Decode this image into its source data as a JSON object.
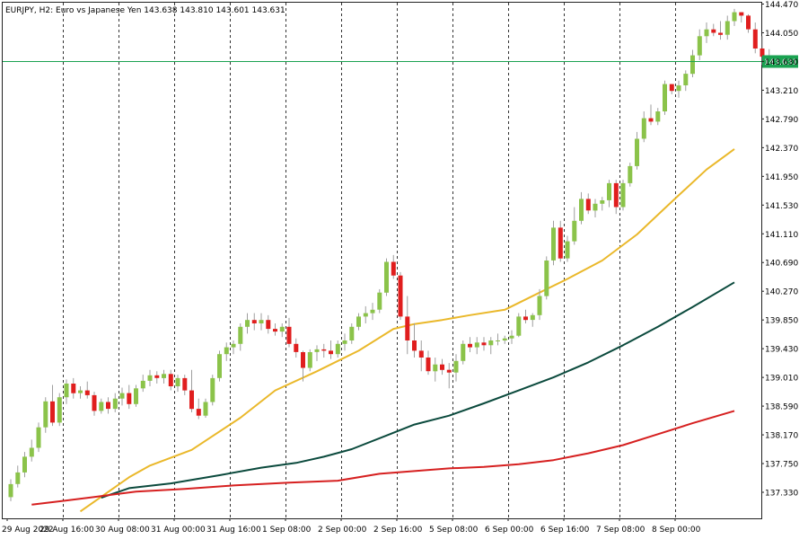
{
  "header": {
    "title": "EURJPY, H2:  Euro vs Japanese Yen  143.638 143.810 143.601 143.631"
  },
  "chart_data": {
    "type": "candlestick",
    "symbol": "EURJPY",
    "timeframe": "H2",
    "description": "Euro vs Japanese Yen",
    "ohlc_header": {
      "open": 143.638,
      "high": 143.81,
      "low": 143.601,
      "close": 143.631
    },
    "current_price": 143.631,
    "current_price_label": "143.631",
    "ylim": [
      137.06,
      144.52
    ],
    "y_ticks": [
      "144.470",
      "144.050",
      "143.630",
      "143.210",
      "142.790",
      "142.370",
      "141.950",
      "141.530",
      "141.110",
      "140.690",
      "140.270",
      "139.850",
      "139.430",
      "139.010",
      "138.590",
      "138.170",
      "137.750",
      "137.330"
    ],
    "x_labels": [
      {
        "bar": 0,
        "label": "29 Aug 2022"
      },
      {
        "bar": 8,
        "label": "29 Aug 16:00"
      },
      {
        "bar": 16,
        "label": "30 Aug 08:00"
      },
      {
        "bar": 24,
        "label": "31 Aug 00:00"
      },
      {
        "bar": 32,
        "label": "31 Aug 16:00"
      },
      {
        "bar": 40,
        "label": "1 Sep 08:00"
      },
      {
        "bar": 48,
        "label": "2 Sep 00:00"
      },
      {
        "bar": 56,
        "label": "2 Sep 16:00"
      },
      {
        "bar": 64,
        "label": "5 Sep 08:00"
      },
      {
        "bar": 72,
        "label": "6 Sep 00:00"
      },
      {
        "bar": 80,
        "label": "6 Sep 16:00"
      },
      {
        "bar": 88,
        "label": "7 Sep 08:00"
      },
      {
        "bar": 96,
        "label": "8 Sep 00:00"
      }
    ],
    "vgrid_bars": [
      8,
      16,
      24,
      32,
      40,
      48,
      56,
      64,
      72,
      80,
      88,
      96
    ],
    "grid": "vertical dashed",
    "candles": [
      [
        137.26,
        137.52,
        137.2,
        137.45
      ],
      [
        137.45,
        137.72,
        137.4,
        137.62
      ],
      [
        137.62,
        137.92,
        137.55,
        137.85
      ],
      [
        137.85,
        138.1,
        137.78,
        137.98
      ],
      [
        137.98,
        138.35,
        137.92,
        138.28
      ],
      [
        138.28,
        138.72,
        138.2,
        138.66
      ],
      [
        138.66,
        138.9,
        138.3,
        138.35
      ],
      [
        138.35,
        138.78,
        138.3,
        138.72
      ],
      [
        138.72,
        138.98,
        138.62,
        138.92
      ],
      [
        138.92,
        139.0,
        138.7,
        138.78
      ],
      [
        138.78,
        138.88,
        138.7,
        138.82
      ],
      [
        138.82,
        138.95,
        138.7,
        138.75
      ],
      [
        138.75,
        138.8,
        138.45,
        138.52
      ],
      [
        138.52,
        138.7,
        138.48,
        138.65
      ],
      [
        138.65,
        138.72,
        138.48,
        138.55
      ],
      [
        138.55,
        138.78,
        138.5,
        138.7
      ],
      [
        138.7,
        138.86,
        138.6,
        138.78
      ],
      [
        138.78,
        138.9,
        138.55,
        138.62
      ],
      [
        138.62,
        138.9,
        138.58,
        138.85
      ],
      [
        138.85,
        139.05,
        138.8,
        138.96
      ],
      [
        138.96,
        139.12,
        138.88,
        139.04
      ],
      [
        139.04,
        139.1,
        138.92,
        139.0
      ],
      [
        139.0,
        139.12,
        138.92,
        139.06
      ],
      [
        139.06,
        139.12,
        138.82,
        138.88
      ],
      [
        138.88,
        139.05,
        138.8,
        139.0
      ],
      [
        139.0,
        139.05,
        138.75,
        138.82
      ],
      [
        138.82,
        139.12,
        138.5,
        138.55
      ],
      [
        138.55,
        138.7,
        138.4,
        138.45
      ],
      [
        138.45,
        138.7,
        138.42,
        138.65
      ],
      [
        138.65,
        139.05,
        138.6,
        139.0
      ],
      [
        139.0,
        139.4,
        138.95,
        139.35
      ],
      [
        139.35,
        139.52,
        139.25,
        139.45
      ],
      [
        139.45,
        139.55,
        139.35,
        139.5
      ],
      [
        139.5,
        139.8,
        139.4,
        139.75
      ],
      [
        139.75,
        139.95,
        139.65,
        139.85
      ],
      [
        139.85,
        139.95,
        139.7,
        139.8
      ],
      [
        139.8,
        139.95,
        139.7,
        139.85
      ],
      [
        139.85,
        139.92,
        139.65,
        139.72
      ],
      [
        139.72,
        139.8,
        139.62,
        139.68
      ],
      [
        139.68,
        139.8,
        139.6,
        139.75
      ],
      [
        139.75,
        139.88,
        139.45,
        139.5
      ],
      [
        139.5,
        139.58,
        139.3,
        139.38
      ],
      [
        139.38,
        139.4,
        138.95,
        139.15
      ],
      [
        139.15,
        139.42,
        139.1,
        139.38
      ],
      [
        139.38,
        139.48,
        139.25,
        139.42
      ],
      [
        139.42,
        139.5,
        139.3,
        139.4
      ],
      [
        139.4,
        139.55,
        139.28,
        139.35
      ],
      [
        139.35,
        139.55,
        139.3,
        139.5
      ],
      [
        139.5,
        139.65,
        139.4,
        139.55
      ],
      [
        139.55,
        139.8,
        139.5,
        139.75
      ],
      [
        139.75,
        139.95,
        139.7,
        139.9
      ],
      [
        139.9,
        140.05,
        139.8,
        139.95
      ],
      [
        139.95,
        140.1,
        139.85,
        140.0
      ],
      [
        140.0,
        140.3,
        139.95,
        140.25
      ],
      [
        140.25,
        140.75,
        140.2,
        140.7
      ],
      [
        140.7,
        140.8,
        140.45,
        140.5
      ],
      [
        140.5,
        140.55,
        139.85,
        139.9
      ],
      [
        139.9,
        140.2,
        139.35,
        139.55
      ],
      [
        139.55,
        139.8,
        139.3,
        139.4
      ],
      [
        139.4,
        139.55,
        139.1,
        139.3
      ],
      [
        139.3,
        139.4,
        139.05,
        139.1
      ],
      [
        139.1,
        139.3,
        138.95,
        139.2
      ],
      [
        139.2,
        139.28,
        139.05,
        139.12
      ],
      [
        139.12,
        139.22,
        138.85,
        139.08
      ],
      [
        139.08,
        139.35,
        138.95,
        139.25
      ],
      [
        139.25,
        139.55,
        139.2,
        139.5
      ],
      [
        139.5,
        139.6,
        139.38,
        139.45
      ],
      [
        139.45,
        139.6,
        139.35,
        139.52
      ],
      [
        139.52,
        139.6,
        139.4,
        139.48
      ],
      [
        139.48,
        139.6,
        139.35,
        139.55
      ],
      [
        139.55,
        139.65,
        139.48,
        139.55
      ],
      [
        139.55,
        139.62,
        139.5,
        139.58
      ],
      [
        139.58,
        139.7,
        139.5,
        139.62
      ],
      [
        139.62,
        139.95,
        139.6,
        139.9
      ],
      [
        139.9,
        140.0,
        139.8,
        139.85
      ],
      [
        139.85,
        139.95,
        139.75,
        139.92
      ],
      [
        139.92,
        140.3,
        139.85,
        140.2
      ],
      [
        140.2,
        140.78,
        140.15,
        140.72
      ],
      [
        140.72,
        141.3,
        140.65,
        141.2
      ],
      [
        141.2,
        141.3,
        140.7,
        140.75
      ],
      [
        140.75,
        141.08,
        140.7,
        141.0
      ],
      [
        141.0,
        141.5,
        140.95,
        141.3
      ],
      [
        141.3,
        141.72,
        141.25,
        141.62
      ],
      [
        141.62,
        141.7,
        141.4,
        141.45
      ],
      [
        141.45,
        141.62,
        141.35,
        141.55
      ],
      [
        141.55,
        141.65,
        141.45,
        141.6
      ],
      [
        141.6,
        141.9,
        141.5,
        141.85
      ],
      [
        141.85,
        141.9,
        141.4,
        141.5
      ],
      [
        141.5,
        141.9,
        141.45,
        141.85
      ],
      [
        141.85,
        142.15,
        141.8,
        142.1
      ],
      [
        142.1,
        142.6,
        142.05,
        142.5
      ],
      [
        142.5,
        142.9,
        142.45,
        142.8
      ],
      [
        142.8,
        143.0,
        142.7,
        142.75
      ],
      [
        142.75,
        142.95,
        142.7,
        142.9
      ],
      [
        142.9,
        143.35,
        142.85,
        143.3
      ],
      [
        143.3,
        143.3,
        143.15,
        143.2
      ],
      [
        143.2,
        143.35,
        143.1,
        143.28
      ],
      [
        143.28,
        143.5,
        143.2,
        143.45
      ],
      [
        143.45,
        143.8,
        143.4,
        143.72
      ],
      [
        143.72,
        144.1,
        143.65,
        144.0
      ],
      [
        144.0,
        144.2,
        143.9,
        144.1
      ],
      [
        144.1,
        144.18,
        144.0,
        144.05
      ],
      [
        144.05,
        144.22,
        143.95,
        144.02
      ],
      [
        144.02,
        144.3,
        143.95,
        144.22
      ],
      [
        144.22,
        144.4,
        144.15,
        144.35
      ],
      [
        144.35,
        144.35,
        144.2,
        144.3
      ],
      [
        144.3,
        144.32,
        144.05,
        144.1
      ],
      [
        144.1,
        144.2,
        143.75,
        143.82
      ],
      [
        143.82,
        144.0,
        143.58,
        143.7
      ],
      [
        143.638,
        143.81,
        143.601,
        143.631
      ]
    ],
    "series": [
      {
        "color": "#eab82a",
        "x": [
          10,
          17,
          20,
          26,
          33,
          38,
          44,
          50,
          55,
          58,
          62,
          66,
          71,
          76,
          80,
          85,
          90,
          95,
          100,
          104
        ],
        "values": [
          137.05,
          137.55,
          137.72,
          137.95,
          138.42,
          138.82,
          139.1,
          139.4,
          139.72,
          139.79,
          139.85,
          139.92,
          140.0,
          140.25,
          140.45,
          140.72,
          141.1,
          141.58,
          142.05,
          142.35
        ]
      },
      {
        "color": "#0b4a3d",
        "x": [
          13,
          17,
          23,
          30,
          36,
          41,
          45,
          49,
          54,
          58,
          63,
          68,
          73,
          78,
          83,
          88,
          93,
          98,
          104
        ],
        "values": [
          137.25,
          137.39,
          137.46,
          137.58,
          137.69,
          137.76,
          137.85,
          137.96,
          138.16,
          138.32,
          138.45,
          138.63,
          138.82,
          139.01,
          139.23,
          139.48,
          139.75,
          140.04,
          140.4
        ]
      },
      {
        "color": "#d62020",
        "x": [
          3,
          8,
          12,
          18,
          25,
          32,
          40,
          47,
          53,
          58,
          63,
          68,
          73,
          78,
          83,
          88,
          93,
          98,
          104
        ],
        "values": [
          137.15,
          137.21,
          137.26,
          137.34,
          137.38,
          137.43,
          137.47,
          137.5,
          137.6,
          137.64,
          137.68,
          137.7,
          137.74,
          137.8,
          137.9,
          138.02,
          138.18,
          138.34,
          138.52
        ]
      }
    ],
    "colors": {
      "bull": "#8bc34a",
      "bear": "#e01e1e",
      "wick": "#9e9e9e",
      "grid": "#333333",
      "price_line": "#1aa251",
      "price_tag_bg": "#1aa251",
      "price_tag_text": "#ffffff"
    }
  }
}
